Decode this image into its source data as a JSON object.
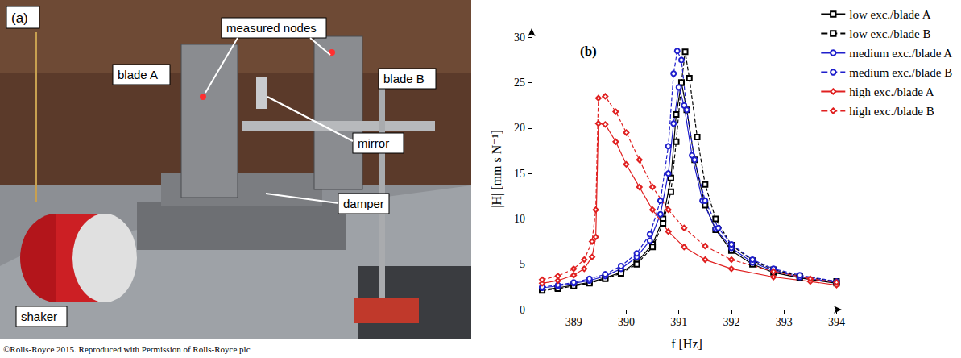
{
  "photo_panel": {
    "letter": "(a)",
    "labels": {
      "measured_nodes": "measured nodes",
      "blade_a": "blade A",
      "blade_b": "blade B",
      "mirror": "mirror",
      "damper": "damper",
      "shaker": "shaker"
    },
    "credit": "©Rolls-Royce 2015. Reproduced with Permission of Rolls-Royce plc"
  },
  "chart_data": {
    "type": "line",
    "title": "(b)",
    "x_label": "f [Hz]",
    "y_label": "|H| [mm s N⁻¹]",
    "xlim": [
      388.2,
      394.1
    ],
    "xticks": [
      389,
      390,
      391,
      392,
      393,
      394
    ],
    "ylim": [
      0,
      31
    ],
    "yticks": [
      0,
      5,
      10,
      15,
      20,
      25,
      30
    ],
    "grid": false,
    "legend": "top-right",
    "series": [
      {
        "name": "low exc./blade A",
        "color": "#000000",
        "marker": "square",
        "line_style": "solid",
        "x": [
          388.4,
          388.7,
          389.0,
          389.3,
          389.6,
          389.9,
          390.2,
          390.5,
          390.7,
          390.85,
          390.95,
          391.05,
          391.15,
          391.3,
          391.5,
          391.7,
          392.0,
          392.4,
          392.8,
          393.3,
          394.0
        ],
        "values": [
          2.2,
          2.4,
          2.7,
          3.0,
          3.5,
          4.1,
          5.2,
          7.2,
          10.0,
          14.5,
          21.5,
          25.0,
          22.0,
          16.5,
          11.5,
          8.8,
          6.5,
          5.0,
          4.1,
          3.5,
          2.9
        ]
      },
      {
        "name": "low exc./blade B",
        "color": "#000000",
        "marker": "square",
        "line_style": "dashed",
        "x": [
          388.4,
          388.7,
          389.0,
          389.3,
          389.6,
          389.9,
          390.2,
          390.5,
          390.7,
          390.85,
          390.95,
          391.05,
          391.12,
          391.2,
          391.35,
          391.5,
          391.7,
          392.0,
          392.4,
          392.8,
          393.3,
          394.0
        ],
        "values": [
          2.1,
          2.3,
          2.6,
          2.9,
          3.4,
          4.0,
          5.0,
          6.9,
          9.5,
          13.0,
          18.5,
          25.0,
          28.4,
          25.5,
          19.0,
          13.8,
          10.0,
          7.1,
          5.4,
          4.4,
          3.7,
          3.1
        ]
      },
      {
        "name": "medium exc./blade A",
        "color": "#1f1fcc",
        "marker": "circle",
        "line_style": "solid",
        "x": [
          388.4,
          388.7,
          389.0,
          389.3,
          389.6,
          389.9,
          390.2,
          390.45,
          390.65,
          390.8,
          390.9,
          391.0,
          391.1,
          391.25,
          391.45,
          391.7,
          392.0,
          392.4,
          392.8,
          393.3,
          394.0
        ],
        "values": [
          2.4,
          2.6,
          2.9,
          3.2,
          3.7,
          4.5,
          5.8,
          7.6,
          10.5,
          15.0,
          20.5,
          24.5,
          22.5,
          17.0,
          12.0,
          8.9,
          6.8,
          5.2,
          4.3,
          3.6,
          3.0
        ]
      },
      {
        "name": "medium exc./blade B",
        "color": "#1f1fcc",
        "marker": "circle",
        "line_style": "dashed",
        "x": [
          388.4,
          388.7,
          389.0,
          389.3,
          389.6,
          389.9,
          390.2,
          390.45,
          390.65,
          390.8,
          390.9,
          390.97,
          391.05,
          391.15,
          391.3,
          391.5,
          391.75,
          392.0,
          392.4,
          392.8,
          393.3,
          394.0
        ],
        "values": [
          2.5,
          2.7,
          3.0,
          3.4,
          3.9,
          4.8,
          6.2,
          8.3,
          12.0,
          18.0,
          26.0,
          28.5,
          27.5,
          22.0,
          16.5,
          12.0,
          9.0,
          7.2,
          5.5,
          4.5,
          3.8,
          3.1
        ]
      },
      {
        "name": "high exc./blade A",
        "color": "#e02020",
        "marker": "diamond",
        "line_style": "solid",
        "x": [
          388.4,
          388.7,
          389.0,
          389.2,
          389.35,
          389.42,
          389.47,
          389.6,
          389.8,
          390.0,
          390.25,
          390.5,
          390.8,
          391.1,
          391.5,
          392.0,
          392.8,
          393.5,
          394.0
        ],
        "values": [
          2.9,
          3.2,
          3.8,
          4.5,
          5.8,
          8.0,
          20.5,
          20.4,
          18.5,
          16.0,
          13.5,
          11.0,
          8.6,
          6.9,
          5.5,
          4.5,
          3.6,
          3.1,
          2.7
        ]
      },
      {
        "name": "high exc./blade B",
        "color": "#e02020",
        "marker": "diamond",
        "line_style": "dashed",
        "x": [
          388.4,
          388.7,
          389.0,
          389.2,
          389.35,
          389.42,
          389.47,
          389.6,
          389.8,
          390.0,
          390.25,
          390.5,
          390.8,
          391.1,
          391.5,
          392.0,
          392.8,
          393.5,
          394.0
        ],
        "values": [
          3.3,
          3.7,
          4.5,
          5.5,
          7.5,
          11.0,
          23.3,
          23.5,
          21.8,
          19.5,
          16.5,
          13.5,
          11.0,
          9.0,
          7.0,
          5.5,
          4.2,
          3.4,
          3.0
        ]
      }
    ]
  }
}
